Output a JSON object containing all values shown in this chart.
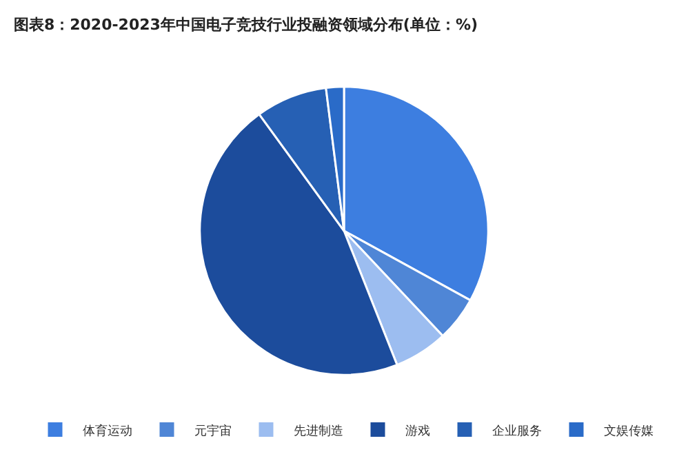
{
  "chart_data": {
    "type": "pie",
    "title": "图表8：2020-2023年中国电子竞技行业投融资领域分布(单位：%)",
    "categories": [
      "体育运动",
      "元宇宙",
      "先进制造",
      "游戏",
      "企业服务",
      "文娱传媒"
    ],
    "values": [
      33,
      5,
      6,
      46,
      8,
      2
    ],
    "colors": [
      "#3d7ee0",
      "#4f86d6",
      "#9cbdf0",
      "#1c4c9c",
      "#2660b4",
      "#2a6bc8"
    ],
    "legend": "bottom"
  }
}
